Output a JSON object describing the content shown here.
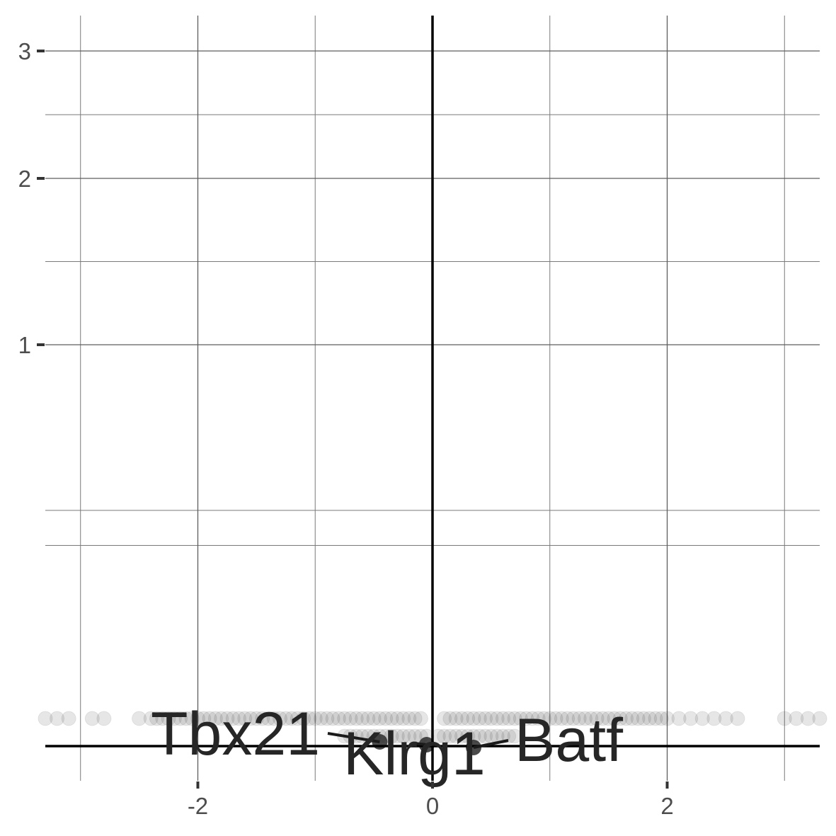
{
  "chart_data": {
    "type": "scatter",
    "title": "",
    "xlabel": "",
    "ylabel": "",
    "xlim": [
      -3.3,
      3.3
    ],
    "ylim": [
      -0.1,
      3.2
    ],
    "x_ticks": [
      -2,
      0,
      2
    ],
    "x_tick_labels": [
      "-2",
      "0",
      "2"
    ],
    "y_ticks": [
      1,
      2,
      3
    ],
    "y_tick_labels": [
      "1",
      "2",
      "3"
    ],
    "grid": true,
    "legend": "none",
    "reference_lines": {
      "vertical_x": 0,
      "horizontal_y": 0
    },
    "point_color": "#303030",
    "point_opacity": 0.12,
    "points_upper_band": {
      "y": 0.14,
      "x": [
        -3.3,
        -3.2,
        -3.1,
        -2.9,
        -2.8,
        -2.5,
        -2.4,
        -2.35,
        -2.3,
        -2.25,
        -2.2,
        -2.15,
        -2.1,
        -2.05,
        -2.0,
        -1.95,
        -1.9,
        -1.85,
        -1.8,
        -1.75,
        -1.7,
        -1.65,
        -1.6,
        -1.55,
        -1.5,
        -1.45,
        -1.4,
        -1.35,
        -1.3,
        -1.25,
        -1.2,
        -1.15,
        -1.1,
        -1.05,
        -1.0,
        -0.95,
        -0.9,
        -0.85,
        -0.8,
        -0.75,
        -0.7,
        -0.65,
        -0.6,
        -0.55,
        -0.5,
        -0.45,
        -0.4,
        -0.35,
        -0.3,
        -0.25,
        -0.2,
        -0.15,
        -0.1,
        0.1,
        0.15,
        0.2,
        0.25,
        0.3,
        0.35,
        0.4,
        0.45,
        0.5,
        0.55,
        0.6,
        0.65,
        0.7,
        0.75,
        0.8,
        0.85,
        0.9,
        0.95,
        1.0,
        1.05,
        1.1,
        1.15,
        1.2,
        1.25,
        1.3,
        1.35,
        1.4,
        1.45,
        1.5,
        1.55,
        1.6,
        1.65,
        1.7,
        1.75,
        1.8,
        1.85,
        1.9,
        1.95,
        2.0,
        2.1,
        2.2,
        2.3,
        2.4,
        2.5,
        2.6,
        3.0,
        3.1,
        3.2,
        3.3
      ]
    },
    "points_lower_band": {
      "y": 0.03,
      "x": [
        -0.75,
        -0.7,
        -0.65,
        -0.6,
        -0.55,
        -0.5,
        -0.45,
        -0.4,
        -0.35,
        -0.3,
        -0.25,
        -0.2,
        -0.15,
        -0.1,
        -0.05,
        0.05,
        0.1,
        0.15,
        0.2,
        0.25,
        0.3,
        0.35,
        0.4,
        0.45,
        0.5,
        0.55,
        0.6,
        0.65,
        0.7
      ]
    },
    "highlighted_points": [
      {
        "label": "Tbx21",
        "x": -0.45,
        "y": 0.02
      },
      {
        "label": "Klrg1",
        "x": -0.05,
        "y": 0.01
      },
      {
        "label": "Batf",
        "x": 0.35,
        "y": 0.0
      }
    ],
    "annotations": [
      {
        "label": "Tbx21",
        "x": -1.6,
        "y": 0.08
      },
      {
        "label": "Klrg1",
        "x": -0.1,
        "y": -0.04
      },
      {
        "label": "Batf",
        "x": 0.85,
        "y": 0.04
      }
    ]
  }
}
